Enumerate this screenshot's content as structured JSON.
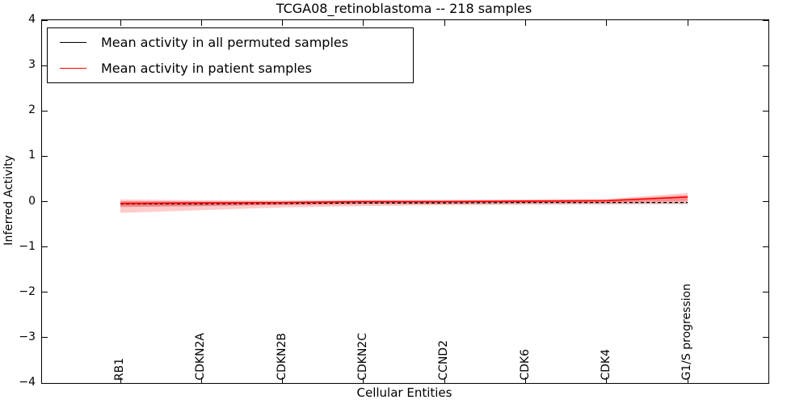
{
  "title": "TCGA08_retinoblastoma -- 218 samples",
  "legend": {
    "items": [
      {
        "label": "Mean activity in all permuted samples",
        "color": "#000000"
      },
      {
        "label": "Mean activity in patient samples",
        "color": "#ff0000"
      }
    ]
  },
  "axes": {
    "ylabel": "Inferred Activity",
    "xlabel": "Cellular Entities",
    "ytick_labels": [
      "4",
      "3",
      "2",
      "1",
      "0",
      "−1",
      "−2",
      "−3",
      "−4"
    ],
    "ytick_values": [
      4,
      3,
      2,
      1,
      0,
      -1,
      -2,
      -3,
      -4
    ]
  },
  "chart_data": {
    "type": "line",
    "title": "TCGA08_retinoblastoma -- 218 samples",
    "xlabel": "Cellular Entities",
    "ylabel": "Inferred Activity",
    "ylim": [
      -4,
      4
    ],
    "grid": false,
    "legend_position": "upper left",
    "categories": [
      "RB1",
      "CDKN2A",
      "CDKN2B",
      "CDKN2C",
      "CCND2",
      "CDK6",
      "CDK4",
      "G1/S progression"
    ],
    "series": [
      {
        "name": "Mean activity in all permuted samples",
        "color": "#000000",
        "linestyle": "dashed",
        "values": [
          -0.05,
          -0.05,
          -0.04,
          -0.03,
          -0.03,
          -0.02,
          -0.02,
          -0.02
        ]
      },
      {
        "name": "Mean activity in patient samples",
        "color": "#ff0000",
        "linestyle": "solid",
        "values": [
          -0.04,
          -0.03,
          -0.02,
          0.0,
          0.0,
          0.01,
          0.02,
          0.1
        ]
      }
    ],
    "bands": [
      {
        "name": "permuted-std-band",
        "color": "rgba(0,0,0,0.10)",
        "upper": [
          0.0,
          0.0,
          0.0,
          0.01,
          0.01,
          0.01,
          0.01,
          0.02
        ],
        "lower": [
          -0.1,
          -0.1,
          -0.08,
          -0.07,
          -0.06,
          -0.06,
          -0.06,
          -0.06
        ]
      },
      {
        "name": "patient-outer-band",
        "color": "rgba(255,0,0,0.20)",
        "upper": [
          0.05,
          0.03,
          0.03,
          0.04,
          0.04,
          0.05,
          0.06,
          0.19
        ],
        "lower": [
          -0.25,
          -0.19,
          -0.13,
          -0.1,
          -0.08,
          -0.07,
          -0.06,
          -0.05
        ]
      },
      {
        "name": "patient-inner-band",
        "color": "rgba(255,0,0,0.30)",
        "upper": [
          0.01,
          0.0,
          0.0,
          0.02,
          0.02,
          0.03,
          0.04,
          0.14
        ],
        "lower": [
          -0.12,
          -0.1,
          -0.07,
          -0.05,
          -0.04,
          -0.03,
          -0.02,
          0.02
        ]
      }
    ]
  }
}
